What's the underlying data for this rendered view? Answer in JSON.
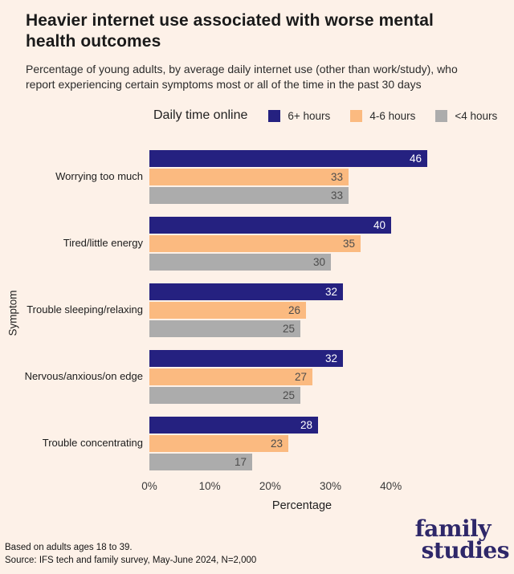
{
  "page": {
    "background": "#fdf1e8"
  },
  "header": {
    "title": "Heavier internet use associated with worse mental health outcomes",
    "subtitle": "Percentage of young adults, by average daily internet use (other than work/study), who report experiencing certain symptoms most or all of the time in the past 30 days"
  },
  "legend": {
    "title": "Daily time online",
    "position": "top"
  },
  "chart_data": {
    "type": "bar",
    "orientation": "horizontal",
    "title": "Heavier internet use associated with worse mental health outcomes",
    "categories": [
      "Worrying too much",
      "Tired/little energy",
      "Trouble sleeping/relaxing",
      "Nervous/anxious/on edge",
      "Trouble concentrating"
    ],
    "series": [
      {
        "name": "6+ hours",
        "color": "#252180",
        "label_color": "#ffffff",
        "values": [
          46,
          40,
          32,
          32,
          28
        ]
      },
      {
        "name": "4-6 hours",
        "color": "#fbba80",
        "label_color": "#4c4c4c",
        "values": [
          33,
          35,
          26,
          27,
          23
        ]
      },
      {
        "name": "<4 hours",
        "color": "#acacac",
        "label_color": "#4c4c4c",
        "values": [
          33,
          30,
          25,
          25,
          17
        ]
      }
    ],
    "xlabel": "Percentage",
    "ylabel": "Symptom",
    "x_ticks": {
      "values": [
        0,
        10,
        20,
        30,
        40
      ],
      "labels": [
        "0%",
        "10%",
        "20%",
        "30%",
        "40%"
      ]
    },
    "xlim": [
      0,
      58
    ],
    "grid": false,
    "value_labels": "inside-end"
  },
  "footer": {
    "note": "Based on adults ages 18 to 39.",
    "source": "Source: IFS tech and family survey, May-June 2024, N=2,000"
  },
  "logo": {
    "line1": "family",
    "line2": "studies",
    "color": "#2e2769"
  }
}
